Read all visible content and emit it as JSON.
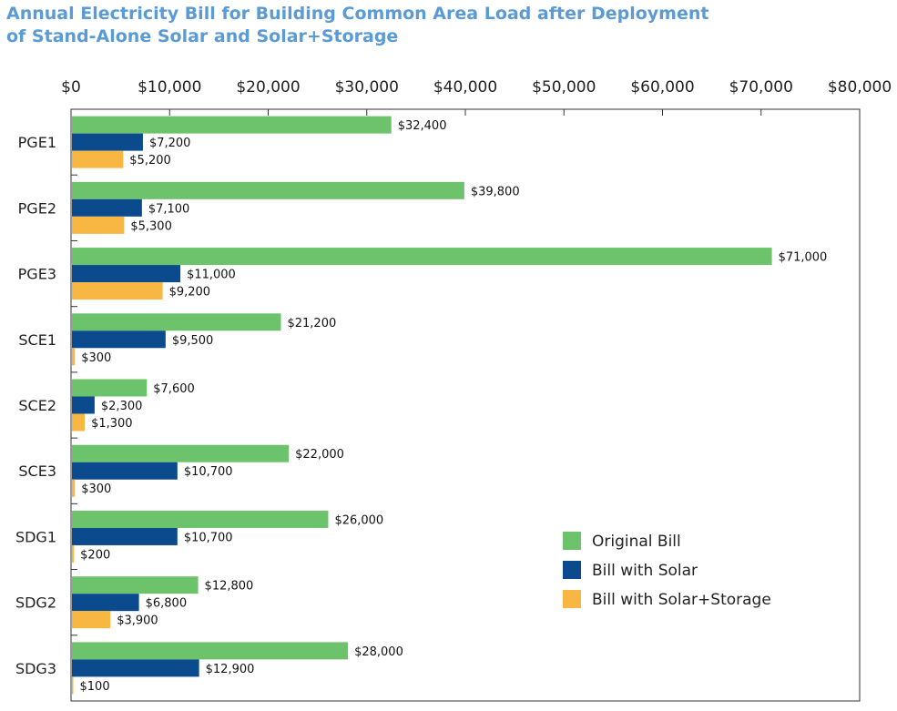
{
  "chart_data": {
    "type": "bar",
    "orientation": "horizontal",
    "title_lines": [
      "Annual Electricity Bill for Building Common Area Load after Deployment",
      "of Stand-Alone Solar and Solar+Storage"
    ],
    "xlim": [
      0,
      80000
    ],
    "x_ticks": [
      0,
      10000,
      20000,
      30000,
      40000,
      50000,
      60000,
      70000,
      80000
    ],
    "x_tick_labels": [
      "$0",
      "$10,000",
      "$20,000",
      "$30,000",
      "$40,000",
      "$50,000",
      "$60,000",
      "$70,000",
      "$80,000"
    ],
    "x_axis_position": "top",
    "grid": false,
    "legend_position": "bottom-right",
    "categories": [
      "PGE1",
      "PGE2",
      "PGE3",
      "SCE1",
      "SCE2",
      "SCE3",
      "SDG1",
      "SDG2",
      "SDG3"
    ],
    "series": [
      {
        "name": "Original Bill",
        "color": "#6cc36b",
        "values": [
          32400,
          39800,
          71000,
          21200,
          7600,
          22000,
          26000,
          12800,
          28000
        ],
        "labels": [
          "$32,400",
          "$39,800",
          "$71,000",
          "$21,200",
          "$7,600",
          "$22,000",
          "$26,000",
          "$12,800",
          "$28,000"
        ]
      },
      {
        "name": "Bill with Solar",
        "color": "#0b4a8c",
        "values": [
          7200,
          7100,
          11000,
          9500,
          2300,
          10700,
          10700,
          6800,
          12900
        ],
        "labels": [
          "$7,200",
          "$7,100",
          "$11,000",
          "$9,500",
          "$2,300",
          "$10,700",
          "$10,700",
          "$6,800",
          "$12,900"
        ]
      },
      {
        "name": "Bill with Solar+Storage",
        "color": "#f8b742",
        "values": [
          5200,
          5300,
          9200,
          300,
          1300,
          300,
          200,
          3900,
          100
        ],
        "labels": [
          "$5,200",
          "$5,300",
          "$9,200",
          "$300",
          "$1,300",
          "$300",
          "$200",
          "$3,900",
          "$100"
        ]
      }
    ]
  }
}
